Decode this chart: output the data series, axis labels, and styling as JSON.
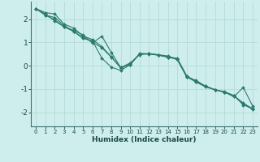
{
  "xlabel": "Humidex (Indice chaleur)",
  "ylabel": "",
  "background_color": "#ceeeed",
  "grid_color": "#b8dddb",
  "line_color": "#2d7a6e",
  "xlim": [
    -0.5,
    23.5
  ],
  "ylim": [
    -2.6,
    2.75
  ],
  "yticks": [
    -2,
    -1,
    0,
    1,
    2
  ],
  "xticks": [
    0,
    1,
    2,
    3,
    4,
    5,
    6,
    7,
    8,
    9,
    10,
    11,
    12,
    13,
    14,
    15,
    16,
    17,
    18,
    19,
    20,
    21,
    22,
    23
  ],
  "series": [
    [
      2.45,
      2.28,
      2.22,
      1.78,
      1.62,
      1.28,
      1.12,
      0.82,
      0.38,
      -0.07,
      0.05,
      0.52,
      0.52,
      0.47,
      0.37,
      0.32,
      -0.43,
      -0.68,
      -0.88,
      -1.03,
      -1.13,
      -1.28,
      -1.68,
      -1.83
    ],
    [
      2.45,
      2.22,
      1.92,
      1.67,
      1.52,
      1.32,
      0.97,
      1.27,
      0.57,
      -0.08,
      0.12,
      0.47,
      0.52,
      0.47,
      0.42,
      0.27,
      -0.48,
      -0.63,
      -0.88,
      -1.03,
      -1.13,
      -1.28,
      -1.63,
      -1.88
    ],
    [
      2.45,
      2.17,
      2.07,
      1.72,
      1.47,
      1.17,
      1.07,
      0.32,
      -0.06,
      -0.2,
      0.04,
      0.52,
      0.5,
      0.45,
      0.37,
      0.27,
      -0.48,
      -0.7,
      -0.91,
      -1.03,
      -1.13,
      -1.33,
      -0.93,
      -1.73
    ],
    [
      2.45,
      2.17,
      1.97,
      1.67,
      1.47,
      1.22,
      1.02,
      0.77,
      0.37,
      -0.1,
      0.07,
      0.5,
      0.51,
      0.46,
      0.38,
      0.29,
      -0.46,
      -0.66,
      -0.88,
      -1.03,
      -1.11,
      -1.28,
      -1.6,
      -1.85
    ]
  ]
}
